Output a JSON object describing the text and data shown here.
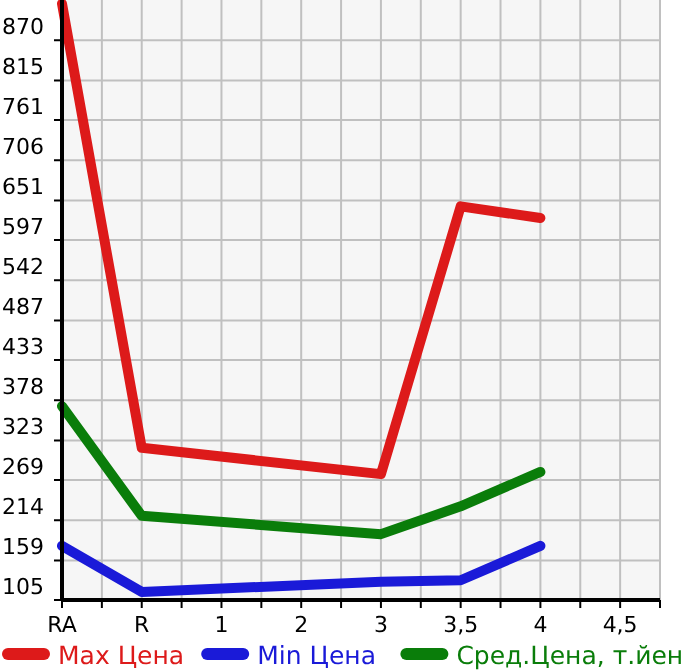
{
  "chart_data": {
    "type": "line",
    "categories": [
      "RA",
      "R",
      "1",
      "2",
      "3",
      "3,5",
      "4",
      "4,5"
    ],
    "series": [
      {
        "name": "Max Цена",
        "color": "#dd1a1a",
        "values": [
          920,
          313,
          null,
          null,
          277,
          643,
          627,
          null
        ]
      },
      {
        "name": "Min Цена",
        "color": "#1a1ad8",
        "values": [
          179,
          116,
          null,
          null,
          130,
          132,
          179,
          null
        ]
      },
      {
        "name": "Сред.Цена, т.йен",
        "color": "#0a7d0a",
        "values": [
          370,
          220,
          null,
          null,
          195,
          233,
          280,
          null
        ]
      }
    ],
    "ylim": [
      105,
      925
    ],
    "yticks": [
      105,
      159,
      214,
      269,
      323,
      378,
      433,
      487,
      542,
      597,
      651,
      706,
      761,
      815,
      870
    ],
    "grid": true,
    "legend": "bottom",
    "marker": "none",
    "line_style": "solid"
  }
}
